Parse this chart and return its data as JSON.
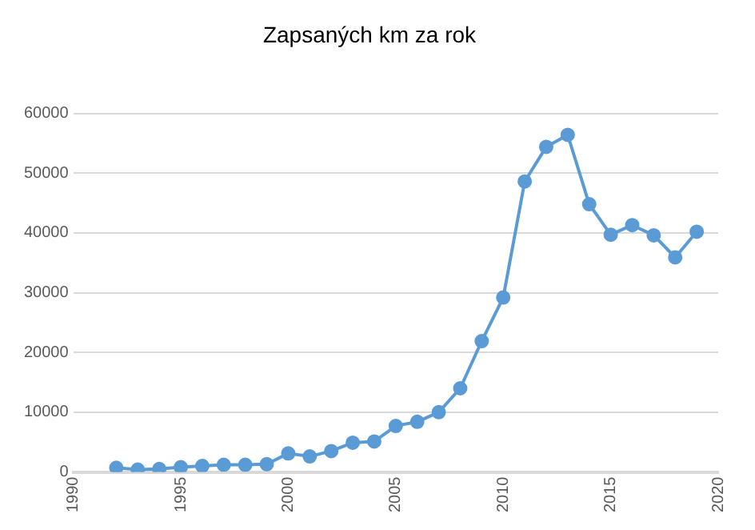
{
  "chart_data": {
    "type": "line",
    "title": "Zapsaných km za rok",
    "x": [
      1992,
      1993,
      1994,
      1995,
      1996,
      1997,
      1998,
      1999,
      2000,
      2001,
      2002,
      2003,
      2004,
      2005,
      2006,
      2007,
      2008,
      2009,
      2010,
      2011,
      2012,
      2013,
      2014,
      2015,
      2016,
      2017,
      2018,
      2019
    ],
    "series": [
      {
        "color": "#5b9bd5",
        "values": [
          700,
          400,
          500,
          800,
          1000,
          1200,
          1200,
          1300,
          3100,
          2600,
          3500,
          4900,
          5100,
          7700,
          8400,
          10000,
          14000,
          21900,
          29200,
          48600,
          54400,
          56400,
          44800,
          39700,
          41300,
          39600,
          35900,
          40200
        ]
      }
    ],
    "xlim": [
      1990,
      2020
    ],
    "xticks": [
      1990,
      1995,
      2000,
      2005,
      2010,
      2015,
      2020
    ],
    "ylim": [
      0,
      60000
    ],
    "yticks": [
      0,
      10000,
      20000,
      30000,
      40000,
      50000,
      60000
    ],
    "grid": "y",
    "legend": false,
    "marker": "circle",
    "line_style": "solid"
  }
}
